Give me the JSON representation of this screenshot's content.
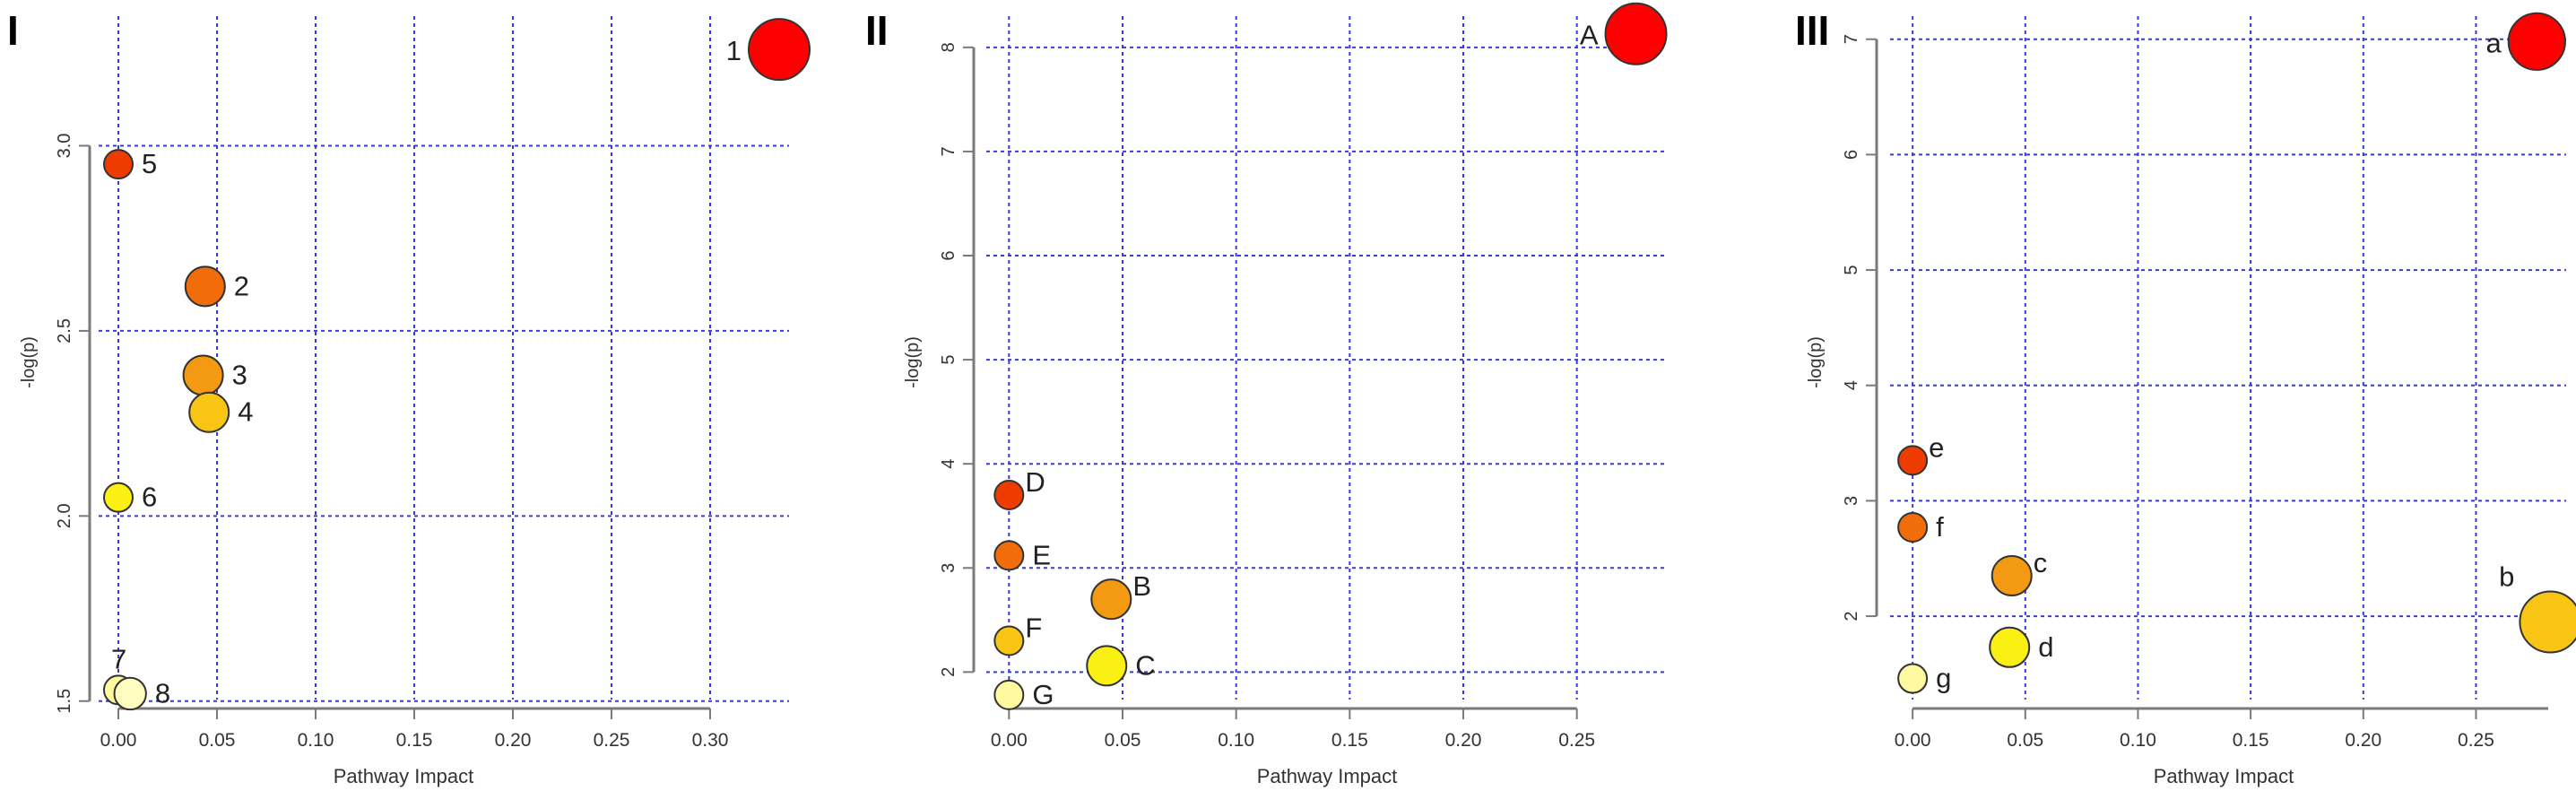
{
  "chart_data": [
    {
      "type": "scatter",
      "panel": "I",
      "xlabel": "Pathway Impact",
      "ylabel": "-log(p)",
      "xlim": [
        -0.01,
        0.34
      ],
      "ylim": [
        1.48,
        3.35
      ],
      "xticks": [
        "0.00",
        "0.05",
        "0.10",
        "0.15",
        "0.20",
        "0.25",
        "0.30"
      ],
      "xtick_values": [
        0,
        0.05,
        0.1,
        0.15,
        0.2,
        0.25,
        0.3
      ],
      "yticks": [
        "1.5",
        "2.0",
        "2.5",
        "3.0"
      ],
      "ytick_values": [
        1.5,
        2.0,
        2.5,
        3.0
      ],
      "grid": true,
      "points": [
        {
          "label": "1",
          "x": 0.335,
          "y": 3.26,
          "size": 1.0,
          "color": "#ff0000",
          "label_side": "left"
        },
        {
          "label": "5",
          "x": 0.0,
          "y": 2.95,
          "size": 0.25,
          "color": "#ee3b00",
          "label_side": "right"
        },
        {
          "label": "2",
          "x": 0.044,
          "y": 2.62,
          "size": 0.5,
          "color": "#f06d0a",
          "label_side": "right"
        },
        {
          "label": "3",
          "x": 0.043,
          "y": 2.38,
          "size": 0.5,
          "color": "#f39a12",
          "label_side": "right"
        },
        {
          "label": "4",
          "x": 0.046,
          "y": 2.28,
          "size": 0.5,
          "color": "#f9c514",
          "label_side": "right"
        },
        {
          "label": "6",
          "x": 0.0,
          "y": 2.05,
          "size": 0.25,
          "color": "#fbf014",
          "label_side": "right"
        },
        {
          "label": "7",
          "x": 0.0,
          "y": 1.53,
          "size": 0.25,
          "color": "#fffaa0",
          "label_side": "above"
        },
        {
          "label": "8",
          "x": 0.006,
          "y": 1.52,
          "size": 0.32,
          "color": "#fffcc0",
          "label_side": "right"
        }
      ]
    },
    {
      "type": "scatter",
      "panel": "II",
      "xlabel": "Pathway Impact",
      "ylabel": "-log(p)",
      "xlim": [
        -0.01,
        0.29
      ],
      "ylim": [
        1.65,
        8.3
      ],
      "xticks": [
        "0.00",
        "0.05",
        "0.10",
        "0.15",
        "0.20",
        "0.25"
      ],
      "xtick_values": [
        0,
        0.05,
        0.1,
        0.15,
        0.2,
        0.25
      ],
      "yticks": [
        "2",
        "3",
        "4",
        "5",
        "6",
        "7",
        "8"
      ],
      "ytick_values": [
        2,
        3,
        4,
        5,
        6,
        7,
        8
      ],
      "grid": true,
      "points": [
        {
          "label": "A",
          "x": 0.276,
          "y": 8.13,
          "size": 1.0,
          "color": "#ff0000",
          "label_side": "left"
        },
        {
          "label": "D",
          "x": 0.0,
          "y": 3.7,
          "size": 0.25,
          "color": "#ee3b00",
          "label_side": "upright"
        },
        {
          "label": "E",
          "x": 0.0,
          "y": 3.12,
          "size": 0.25,
          "color": "#f06d0a",
          "label_side": "right"
        },
        {
          "label": "B",
          "x": 0.045,
          "y": 2.7,
          "size": 0.5,
          "color": "#f39a12",
          "label_side": "upright"
        },
        {
          "label": "F",
          "x": 0.0,
          "y": 2.3,
          "size": 0.25,
          "color": "#f9c514",
          "label_side": "upright"
        },
        {
          "label": "C",
          "x": 0.043,
          "y": 2.06,
          "size": 0.5,
          "color": "#fbf014",
          "label_side": "right"
        },
        {
          "label": "G",
          "x": 0.0,
          "y": 1.78,
          "size": 0.25,
          "color": "#fffaa0",
          "label_side": "right"
        }
      ]
    },
    {
      "type": "scatter",
      "panel": "III",
      "xlabel": "Pathway Impact",
      "ylabel": "-log(p)",
      "xlim": [
        -0.01,
        0.29
      ],
      "ylim": [
        1.2,
        7.2
      ],
      "xticks": [
        "0.00",
        "0.05",
        "0.10",
        "0.15",
        "0.20",
        "0.25"
      ],
      "xtick_values": [
        0,
        0.05,
        0.1,
        0.15,
        0.2,
        0.25
      ],
      "yticks": [
        "2",
        "3",
        "4",
        "5",
        "6",
        "7"
      ],
      "ytick_values": [
        2,
        3,
        4,
        5,
        6,
        7
      ],
      "grid": true,
      "points": [
        {
          "label": "a",
          "x": 0.277,
          "y": 6.98,
          "size": 0.9,
          "color": "#ff0000",
          "label_side": "left"
        },
        {
          "label": "e",
          "x": 0.0,
          "y": 3.35,
          "size": 0.25,
          "color": "#ee3b00",
          "label_side": "upright"
        },
        {
          "label": "f",
          "x": 0.0,
          "y": 2.77,
          "size": 0.25,
          "color": "#f06d0a",
          "label_side": "right"
        },
        {
          "label": "c",
          "x": 0.044,
          "y": 2.35,
          "size": 0.5,
          "color": "#f39a12",
          "label_side": "upright"
        },
        {
          "label": "b",
          "x": 0.283,
          "y": 1.95,
          "size": 1.0,
          "color": "#f9c514",
          "label_side": "upleft"
        },
        {
          "label": "d",
          "x": 0.043,
          "y": 1.73,
          "size": 0.5,
          "color": "#fbf014",
          "label_side": "right"
        },
        {
          "label": "g",
          "x": 0.0,
          "y": 1.46,
          "size": 0.25,
          "color": "#fffaa0",
          "label_side": "right"
        }
      ]
    }
  ]
}
